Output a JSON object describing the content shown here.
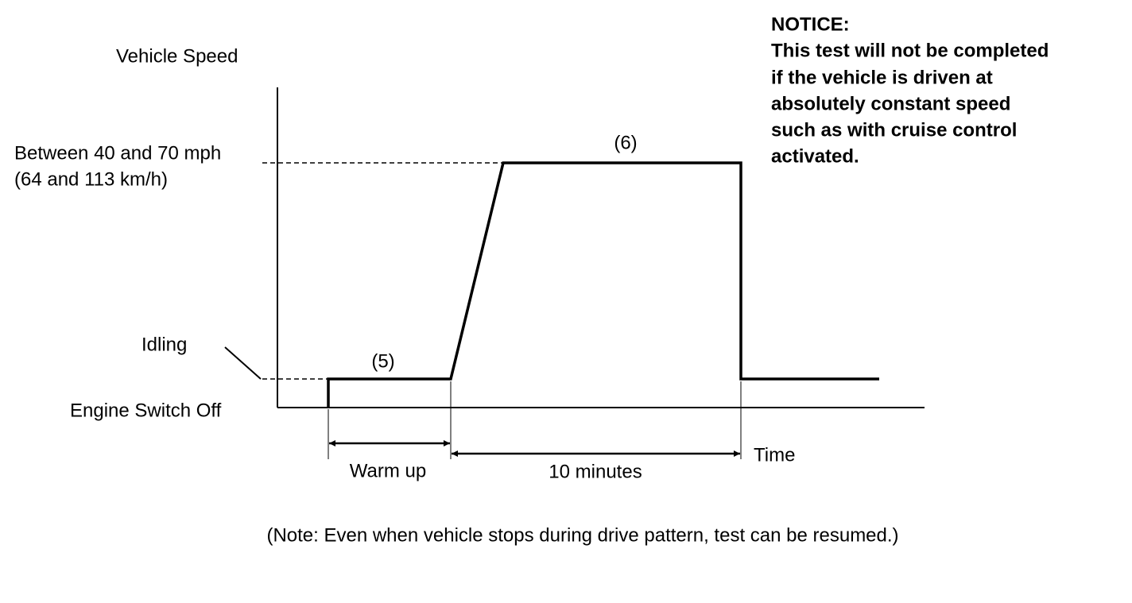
{
  "axis": {
    "y_label": "Vehicle Speed",
    "x_label": "Time"
  },
  "levels": {
    "high": [
      "Between 40 and 70 mph",
      "(64 and 113 km/h)"
    ],
    "idling": "Idling",
    "off": "Engine Switch Off"
  },
  "phases": {
    "step_5": "(5)",
    "step_6": "(6)",
    "warm_up": "Warm up",
    "duration": "10 minutes"
  },
  "notice": {
    "title": "NOTICE:",
    "lines": [
      "This test will not be completed",
      "if the vehicle is driven at",
      "absolutely constant speed",
      "such as with cruise control",
      "activated."
    ]
  },
  "note": "(Note: Even when vehicle stops during drive pattern, test can be resumed.)"
}
